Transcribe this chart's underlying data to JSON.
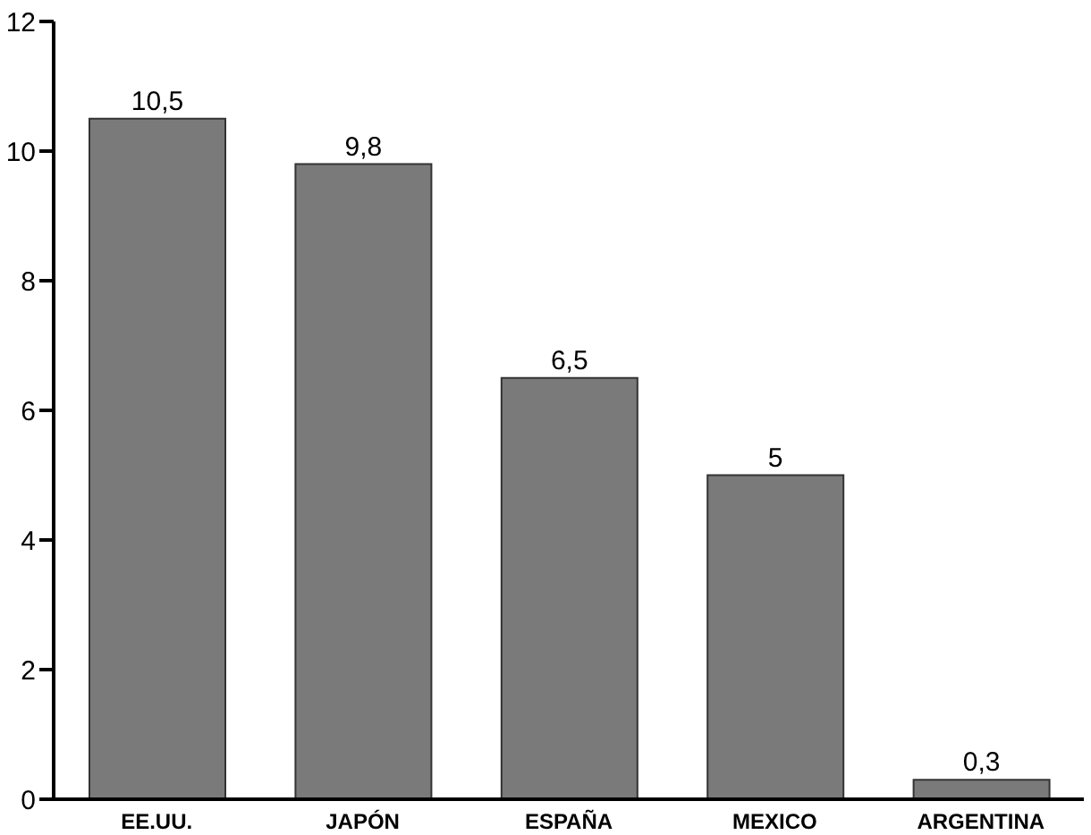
{
  "chart_data": {
    "type": "bar",
    "categories": [
      "EE.UU.",
      "JAPÓN",
      "ESPAÑA",
      "MEXICO",
      "ARGENTINA"
    ],
    "values": [
      10.5,
      9.8,
      6.5,
      5,
      0.3
    ],
    "value_labels": [
      "10,5",
      "9,8",
      "6,5",
      "5",
      "0,3"
    ],
    "color": "#7a7a7a",
    "ylim": [
      0,
      12
    ],
    "yticks": [
      0,
      2,
      4,
      6,
      8,
      10,
      12
    ],
    "grid": false
  }
}
